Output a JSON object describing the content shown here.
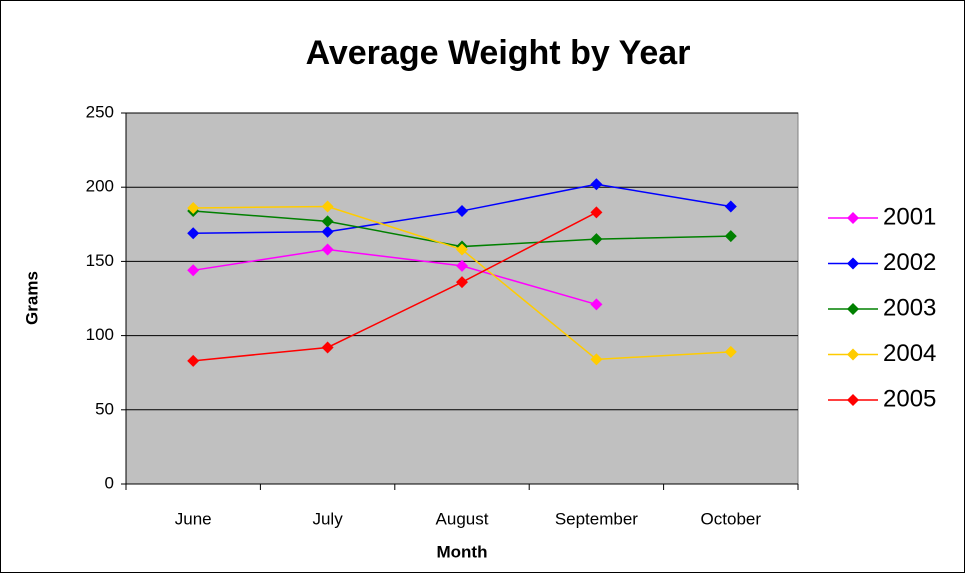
{
  "chart_data": {
    "type": "line",
    "title": "Average Weight by Year",
    "x_label": "Month",
    "y_label": "Grams",
    "categories": [
      "June",
      "July",
      "August",
      "September",
      "October"
    ],
    "series": [
      {
        "name": "2001",
        "color": "#ff00ff",
        "values": [
          144,
          158,
          147,
          121,
          null
        ]
      },
      {
        "name": "2002",
        "color": "#0000ff",
        "values": [
          169,
          170,
          184,
          202,
          187
        ]
      },
      {
        "name": "2003",
        "color": "#008000",
        "values": [
          184,
          177,
          160,
          165,
          167
        ]
      },
      {
        "name": "2004",
        "color": "#ffcc00",
        "values": [
          186,
          187,
          158,
          84,
          89
        ]
      },
      {
        "name": "2005",
        "color": "#ff0000",
        "values": [
          83,
          92,
          136,
          183,
          null
        ]
      }
    ],
    "ylim": [
      0,
      250
    ],
    "yticks": [
      0,
      50,
      100,
      150,
      200,
      250
    ],
    "grid": true,
    "legend": "right"
  }
}
